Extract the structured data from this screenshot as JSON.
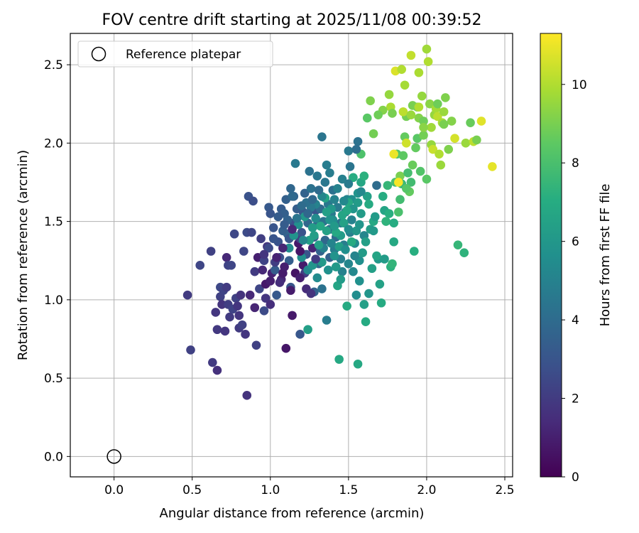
{
  "chart_data": {
    "type": "scatter",
    "title": "FOV centre drift starting at 2025/11/08 00:39:52",
    "xlabel": "Angular distance from reference (arcmin)",
    "ylabel": "Rotation from reference (arcmin)",
    "xlim": [
      -0.28,
      2.55
    ],
    "ylim": [
      -0.13,
      2.7
    ],
    "xticks": [
      0.0,
      0.5,
      1.0,
      1.5,
      2.0,
      2.5
    ],
    "xtick_labels": [
      "0.0",
      "0.5",
      "1.0",
      "1.5",
      "2.0",
      "2.5"
    ],
    "yticks": [
      0.0,
      0.5,
      1.0,
      1.5,
      2.0,
      2.5
    ],
    "ytick_labels": [
      "0.0",
      "0.5",
      "1.0",
      "1.5",
      "2.0",
      "2.5"
    ],
    "grid": true,
    "legend": {
      "placement": "top-left",
      "entries": [
        {
          "label": "Reference platepar",
          "marker": "open-circle"
        }
      ]
    },
    "reference_point": {
      "x": 0.0,
      "y": 0.0
    },
    "colorbar": {
      "label": "Hours from first FF file",
      "colormap": "viridis",
      "range": [
        0,
        11.3
      ],
      "ticks": [
        0,
        2,
        4,
        6,
        8,
        10
      ],
      "tick_labels": [
        "0",
        "2",
        "4",
        "6",
        "8",
        "10"
      ]
    },
    "points": [
      [
        0.47,
        1.03,
        2.0
      ],
      [
        0.49,
        0.68,
        2.2
      ],
      [
        0.55,
        1.22,
        2.4
      ],
      [
        0.62,
        1.31,
        2.2
      ],
      [
        0.63,
        0.6,
        2.0
      ],
      [
        0.65,
        0.92,
        1.8
      ],
      [
        0.66,
        0.81,
        1.9
      ],
      [
        0.66,
        0.55,
        1.6
      ],
      [
        0.68,
        1.02,
        2.2
      ],
      [
        0.68,
        1.08,
        2.5
      ],
      [
        0.69,
        0.97,
        1.7
      ],
      [
        0.7,
        1.06,
        2.3
      ],
      [
        0.71,
        0.8,
        1.8
      ],
      [
        0.72,
        1.08,
        2.0
      ],
      [
        0.72,
        1.27,
        1.3
      ],
      [
        0.73,
        1.22,
        2.3
      ],
      [
        0.73,
        0.97,
        2.1
      ],
      [
        0.74,
        0.89,
        2.0
      ],
      [
        0.75,
        1.22,
        2.4
      ],
      [
        0.76,
        0.94,
        2.3
      ],
      [
        0.77,
        1.42,
        2.5
      ],
      [
        0.78,
        1.01,
        2.2
      ],
      [
        0.79,
        0.96,
        1.8
      ],
      [
        0.8,
        0.9,
        1.8
      ],
      [
        0.8,
        0.82,
        2.0
      ],
      [
        0.81,
        1.03,
        1.7
      ],
      [
        0.82,
        0.84,
        2.2
      ],
      [
        0.83,
        1.31,
        2.4
      ],
      [
        0.84,
        0.78,
        1.8
      ],
      [
        0.85,
        0.39,
        1.7
      ],
      [
        0.85,
        1.43,
        2.6
      ],
      [
        0.86,
        1.66,
        2.9
      ],
      [
        0.87,
        1.03,
        1.3
      ],
      [
        0.88,
        1.43,
        2.4
      ],
      [
        0.89,
        1.63,
        2.7
      ],
      [
        0.9,
        1.18,
        2.0
      ],
      [
        0.9,
        0.95,
        1.2
      ],
      [
        0.91,
        0.71,
        2.2
      ],
      [
        0.92,
        1.27,
        1.0
      ],
      [
        0.93,
        1.07,
        2.4
      ],
      [
        0.95,
        1.19,
        1.3
      ],
      [
        0.96,
        0.93,
        2.6
      ],
      [
        0.97,
        1.01,
        1.8
      ],
      [
        0.97,
        1.1,
        0.8
      ],
      [
        0.98,
        1.34,
        1.9
      ],
      [
        0.99,
        1.59,
        3.2
      ],
      [
        1.0,
        0.97,
        1.5
      ],
      [
        1.0,
        1.55,
        3.0
      ],
      [
        1.01,
        1.17,
        1.1
      ],
      [
        1.02,
        1.46,
        3.0
      ],
      [
        1.03,
        1.19,
        3.3
      ],
      [
        1.04,
        1.03,
        3.2
      ],
      [
        1.05,
        1.37,
        2.9
      ],
      [
        1.06,
        1.27,
        2.8
      ],
      [
        1.07,
        1.13,
        1.2
      ],
      [
        1.07,
        1.58,
        3.3
      ],
      [
        1.08,
        1.17,
        0.9
      ],
      [
        1.09,
        1.55,
        3.5
      ],
      [
        1.1,
        0.69,
        0.7
      ],
      [
        1.1,
        1.64,
        3.5
      ],
      [
        1.11,
        1.42,
        3.8
      ],
      [
        1.12,
        1.25,
        3.4
      ],
      [
        1.12,
        1.39,
        3.1
      ],
      [
        1.13,
        1.08,
        3.0
      ],
      [
        1.13,
        1.71,
        3.8
      ],
      [
        1.14,
        0.9,
        0.8
      ],
      [
        1.15,
        1.49,
        2.8
      ],
      [
        1.15,
        1.66,
        3.6
      ],
      [
        1.16,
        1.87,
        4.6
      ],
      [
        1.17,
        1.58,
        3.4
      ],
      [
        1.18,
        1.36,
        0.8
      ],
      [
        1.19,
        0.78,
        3.1
      ],
      [
        1.19,
        1.39,
        2.2
      ],
      [
        1.2,
        1.43,
        2.9
      ],
      [
        1.21,
        1.22,
        0.9
      ],
      [
        1.21,
        1.56,
        3.2
      ],
      [
        1.22,
        1.17,
        2.1
      ],
      [
        1.22,
        1.68,
        3.6
      ],
      [
        1.23,
        1.29,
        3.0
      ],
      [
        1.24,
        0.81,
        6.4
      ],
      [
        1.24,
        1.49,
        3.8
      ],
      [
        1.25,
        1.82,
        4.3
      ],
      [
        1.26,
        1.71,
        4.3
      ],
      [
        1.27,
        1.33,
        1.2
      ],
      [
        1.28,
        1.4,
        3.2
      ],
      [
        1.28,
        1.05,
        3.6
      ],
      [
        1.29,
        1.57,
        3.0
      ],
      [
        1.3,
        1.79,
        4.5
      ],
      [
        1.3,
        1.48,
        3.7
      ],
      [
        1.31,
        1.23,
        3.9
      ],
      [
        1.32,
        1.31,
        3.6
      ],
      [
        1.32,
        1.58,
        4.0
      ],
      [
        1.33,
        2.04,
        4.4
      ],
      [
        1.33,
        1.07,
        4.3
      ],
      [
        1.34,
        1.5,
        4.3
      ],
      [
        1.35,
        1.75,
        4.5
      ],
      [
        1.35,
        1.38,
        3.8
      ],
      [
        1.36,
        0.87,
        4.8
      ],
      [
        1.36,
        1.86,
        4.8
      ],
      [
        1.37,
        1.61,
        4.5
      ],
      [
        1.38,
        1.27,
        3.5
      ],
      [
        1.38,
        1.45,
        4.1
      ],
      [
        1.39,
        1.55,
        4.6
      ],
      [
        1.4,
        1.7,
        4.2
      ],
      [
        1.41,
        1.32,
        4.8
      ],
      [
        1.41,
        1.64,
        5.0
      ],
      [
        1.42,
        1.4,
        4.0
      ],
      [
        1.43,
        1.09,
        6.6
      ],
      [
        1.43,
        1.59,
        4.7
      ],
      [
        1.44,
        0.62,
        6.8
      ],
      [
        1.45,
        1.26,
        4.9
      ],
      [
        1.45,
        1.49,
        4.4
      ],
      [
        1.46,
        1.77,
        4.9
      ],
      [
        1.47,
        1.35,
        4.8
      ],
      [
        1.48,
        1.56,
        4.5
      ],
      [
        1.49,
        0.96,
        6.9
      ],
      [
        1.49,
        1.64,
        5.1
      ],
      [
        1.5,
        1.23,
        5.2
      ],
      [
        1.5,
        1.95,
        4.6
      ],
      [
        1.51,
        1.43,
        4.9
      ],
      [
        1.52,
        1.64,
        5.6
      ],
      [
        1.52,
        1.51,
        5.0
      ],
      [
        1.53,
        1.18,
        5.3
      ],
      [
        1.54,
        1.36,
        5.4
      ],
      [
        1.55,
        1.03,
        5.5
      ],
      [
        1.56,
        1.68,
        5.8
      ],
      [
        1.56,
        2.01,
        4.3
      ],
      [
        1.56,
        0.59,
        6.8
      ],
      [
        1.57,
        1.25,
        5.6
      ],
      [
        1.58,
        1.55,
        6.2
      ],
      [
        1.58,
        1.75,
        6.7
      ],
      [
        1.59,
        1.3,
        6.2
      ],
      [
        1.6,
        0.97,
        6.4
      ],
      [
        1.6,
        1.41,
        5.2
      ],
      [
        1.61,
        0.86,
        6.9
      ],
      [
        1.62,
        1.66,
        6.4
      ],
      [
        1.63,
        1.04,
        5.9
      ],
      [
        1.64,
        1.45,
        6.3
      ],
      [
        1.65,
        1.2,
        6.4
      ],
      [
        1.66,
        1.5,
        6.8
      ],
      [
        1.67,
        1.53,
        6.2
      ],
      [
        1.68,
        1.73,
        4.0
      ],
      [
        1.69,
        1.26,
        6.0
      ],
      [
        1.7,
        1.1,
        6.5
      ],
      [
        1.71,
        0.98,
        6.9
      ],
      [
        1.72,
        1.66,
        7.0
      ],
      [
        1.73,
        1.57,
        6.6
      ],
      [
        1.73,
        1.26,
        6.2
      ],
      [
        1.75,
        1.73,
        7.5
      ],
      [
        1.76,
        1.55,
        7.1
      ],
      [
        1.77,
        1.21,
        7.2
      ],
      [
        1.78,
        1.23,
        7.4
      ],
      [
        1.79,
        1.37,
        6.8
      ],
      [
        1.8,
        1.75,
        8.0
      ],
      [
        1.81,
        1.93,
        8.2
      ],
      [
        1.82,
        1.56,
        8.0
      ],
      [
        1.83,
        1.79,
        9.0
      ],
      [
        1.84,
        1.74,
        7.6
      ],
      [
        1.85,
        1.92,
        8.5
      ],
      [
        1.86,
        2.04,
        8.6
      ],
      [
        1.87,
        2.17,
        8.9
      ],
      [
        1.88,
        1.81,
        7.9
      ],
      [
        1.89,
        1.69,
        8.6
      ],
      [
        1.9,
        1.75,
        7.8
      ],
      [
        1.91,
        2.24,
        9.0
      ],
      [
        1.92,
        1.31,
        7.1
      ],
      [
        1.93,
        1.97,
        8.6
      ],
      [
        1.94,
        2.23,
        9.0
      ],
      [
        1.95,
        2.16,
        9.2
      ],
      [
        1.96,
        1.82,
        8.2
      ],
      [
        1.97,
        2.3,
        9.5
      ],
      [
        1.98,
        2.14,
        8.8
      ],
      [
        2.0,
        1.77,
        8.4
      ],
      [
        2.01,
        2.52,
        10.0
      ],
      [
        2.02,
        2.25,
        9.3
      ],
      [
        2.03,
        1.99,
        9.5
      ],
      [
        2.04,
        1.96,
        10.4
      ],
      [
        2.05,
        2.18,
        9.5
      ],
      [
        2.06,
        2.22,
        9.8
      ],
      [
        2.07,
        2.17,
        10.2
      ],
      [
        2.08,
        1.93,
        10.0
      ],
      [
        2.09,
        1.86,
        9.6
      ],
      [
        2.1,
        2.13,
        9.8
      ],
      [
        2.11,
        2.2,
        9.6
      ],
      [
        2.12,
        2.29,
        9.1
      ],
      [
        2.14,
        1.96,
        9.1
      ],
      [
        2.16,
        2.14,
        9.2
      ],
      [
        2.18,
        2.03,
        10.6
      ],
      [
        2.2,
        1.35,
        7.5
      ],
      [
        2.24,
        1.3,
        7.3
      ],
      [
        2.25,
        2.0,
        9.6
      ],
      [
        2.28,
        2.13,
        8.7
      ],
      [
        2.3,
        2.01,
        10.2
      ],
      [
        2.32,
        2.02,
        9.0
      ],
      [
        2.35,
        2.14,
        10.8
      ],
      [
        2.42,
        1.85,
        10.9
      ],
      [
        1.77,
        2.23,
        9.9
      ],
      [
        1.8,
        2.46,
        10.7
      ],
      [
        1.84,
        2.47,
        10.0
      ],
      [
        1.86,
        2.37,
        9.8
      ],
      [
        1.9,
        2.56,
        10.3
      ],
      [
        1.95,
        2.45,
        9.9
      ],
      [
        2.0,
        2.6,
        9.7
      ],
      [
        1.76,
        2.31,
        9.5
      ],
      [
        1.72,
        2.21,
        9.2
      ],
      [
        1.69,
        2.18,
        8.8
      ],
      [
        1.64,
        2.27,
        9.1
      ],
      [
        1.62,
        2.16,
        8.4
      ],
      [
        1.66,
        2.06,
        8.9
      ],
      [
        1.78,
        2.19,
        9.0
      ],
      [
        1.58,
        1.93,
        8.1
      ],
      [
        1.6,
        1.79,
        7.2
      ],
      [
        1.53,
        1.78,
        7.0
      ],
      [
        1.5,
        1.62,
        6.8
      ],
      [
        1.47,
        1.49,
        6.5
      ],
      [
        1.45,
        1.41,
        6.2
      ],
      [
        1.42,
        1.43,
        6.8
      ],
      [
        1.39,
        1.58,
        6.0
      ],
      [
        1.35,
        1.65,
        6.6
      ],
      [
        1.32,
        1.47,
        6.7
      ],
      [
        1.28,
        1.41,
        6.3
      ],
      [
        1.25,
        1.38,
        6.4
      ],
      [
        1.22,
        1.53,
        6.0
      ],
      [
        1.18,
        1.48,
        5.7
      ],
      [
        1.15,
        1.41,
        5.8
      ],
      [
        1.12,
        1.33,
        5.5
      ],
      [
        1.2,
        1.27,
        5.6
      ],
      [
        1.24,
        1.19,
        5.3
      ],
      [
        1.27,
        1.22,
        5.9
      ],
      [
        1.3,
        1.14,
        5.4
      ],
      [
        1.33,
        1.24,
        6.1
      ],
      [
        1.37,
        1.19,
        5.7
      ],
      [
        1.41,
        1.28,
        5.8
      ],
      [
        1.44,
        1.34,
        6.3
      ],
      [
        1.48,
        1.32,
        5.6
      ],
      [
        1.52,
        1.37,
        6.9
      ],
      [
        1.55,
        1.44,
        6.0
      ],
      [
        1.57,
        1.48,
        5.9
      ],
      [
        1.61,
        1.37,
        6.4
      ],
      [
        1.47,
        1.63,
        5.3
      ],
      [
        1.43,
        1.71,
        5.0
      ],
      [
        1.4,
        1.51,
        5.6
      ],
      [
        1.36,
        1.56,
        6.4
      ],
      [
        1.33,
        1.66,
        5.2
      ],
      [
        1.29,
        1.61,
        5.0
      ],
      [
        1.26,
        1.59,
        4.6
      ],
      [
        1.23,
        1.62,
        4.2
      ],
      [
        1.2,
        1.6,
        4.0
      ],
      [
        1.17,
        1.52,
        4.4
      ],
      [
        1.14,
        1.66,
        3.9
      ],
      [
        1.11,
        1.51,
        3.6
      ],
      [
        1.08,
        1.44,
        3.5
      ],
      [
        1.05,
        1.53,
        3.3
      ],
      [
        1.02,
        1.39,
        3.0
      ],
      [
        0.99,
        1.33,
        2.6
      ],
      [
        0.96,
        1.25,
        2.3
      ],
      [
        0.94,
        1.39,
        2.1
      ],
      [
        1.06,
        1.11,
        1.5
      ],
      [
        1.09,
        1.21,
        1.0
      ],
      [
        1.13,
        1.06,
        0.9
      ],
      [
        1.16,
        1.17,
        0.6
      ],
      [
        1.19,
        1.14,
        1.0
      ],
      [
        1.23,
        1.07,
        1.4
      ],
      [
        1.26,
        1.04,
        1.7
      ],
      [
        1.29,
        1.26,
        2.0
      ],
      [
        1.34,
        1.33,
        4.9
      ],
      [
        1.39,
        1.36,
        5.1
      ],
      [
        1.46,
        1.18,
        5.0
      ],
      [
        1.5,
        1.45,
        5.5
      ],
      [
        1.54,
        1.28,
        5.1
      ],
      [
        1.57,
        1.12,
        5.7
      ],
      [
        1.45,
        1.13,
        6.2
      ],
      [
        1.42,
        1.21,
        6.1
      ],
      [
        1.36,
        1.44,
        6.5
      ],
      [
        1.31,
        1.35,
        6.4
      ],
      [
        1.27,
        1.46,
        6.2
      ],
      [
        1.56,
        1.62,
        6.2
      ],
      [
        1.53,
        1.58,
        5.9
      ],
      [
        1.51,
        1.85,
        4.4
      ],
      [
        1.55,
        1.96,
        4.1
      ],
      [
        1.58,
        1.69,
        5.3
      ],
      [
        1.5,
        1.74,
        4.7
      ],
      [
        1.38,
        1.81,
        4.8
      ],
      [
        1.31,
        1.7,
        4.0
      ],
      [
        1.27,
        1.64,
        3.9
      ],
      [
        1.24,
        1.55,
        3.8
      ],
      [
        1.09,
        1.48,
        3.3
      ],
      [
        1.03,
        1.24,
        2.1
      ],
      [
        0.96,
        1.29,
        1.8
      ],
      [
        1.0,
        1.12,
        1.0
      ],
      [
        1.04,
        1.27,
        1.1
      ],
      [
        1.08,
        1.33,
        1.2
      ],
      [
        1.14,
        1.45,
        1.3
      ],
      [
        1.19,
        1.31,
        0.7
      ],
      [
        1.21,
        1.38,
        5.2
      ],
      [
        1.29,
        1.52,
        5.4
      ],
      [
        1.38,
        1.51,
        5.8
      ],
      [
        1.41,
        1.47,
        6.1
      ],
      [
        1.46,
        1.54,
        6.6
      ],
      [
        1.49,
        1.57,
        6.7
      ],
      [
        1.63,
        1.61,
        6.9
      ],
      [
        1.66,
        1.44,
        6.1
      ],
      [
        1.68,
        1.28,
        6.6
      ],
      [
        1.74,
        1.5,
        7.3
      ],
      [
        1.79,
        1.49,
        7.0
      ],
      [
        1.83,
        1.64,
        7.8
      ],
      [
        1.87,
        1.71,
        8.3
      ],
      [
        1.91,
        1.86,
        8.7
      ],
      [
        1.94,
        2.03,
        8.4
      ],
      [
        1.98,
        2.05,
        8.9
      ],
      [
        2.03,
        2.1,
        9.7
      ],
      [
        2.07,
        2.25,
        8.8
      ],
      [
        2.11,
        2.12,
        9.0
      ],
      [
        1.95,
        2.23,
        10.0
      ],
      [
        1.87,
        2.0,
        10.5
      ],
      [
        1.79,
        1.93,
        11.0
      ],
      [
        1.82,
        1.75,
        11.2
      ],
      [
        1.85,
        2.2,
        10.2
      ],
      [
        1.9,
        2.18,
        9.6
      ],
      [
        1.98,
        2.1,
        9.3
      ]
    ]
  }
}
